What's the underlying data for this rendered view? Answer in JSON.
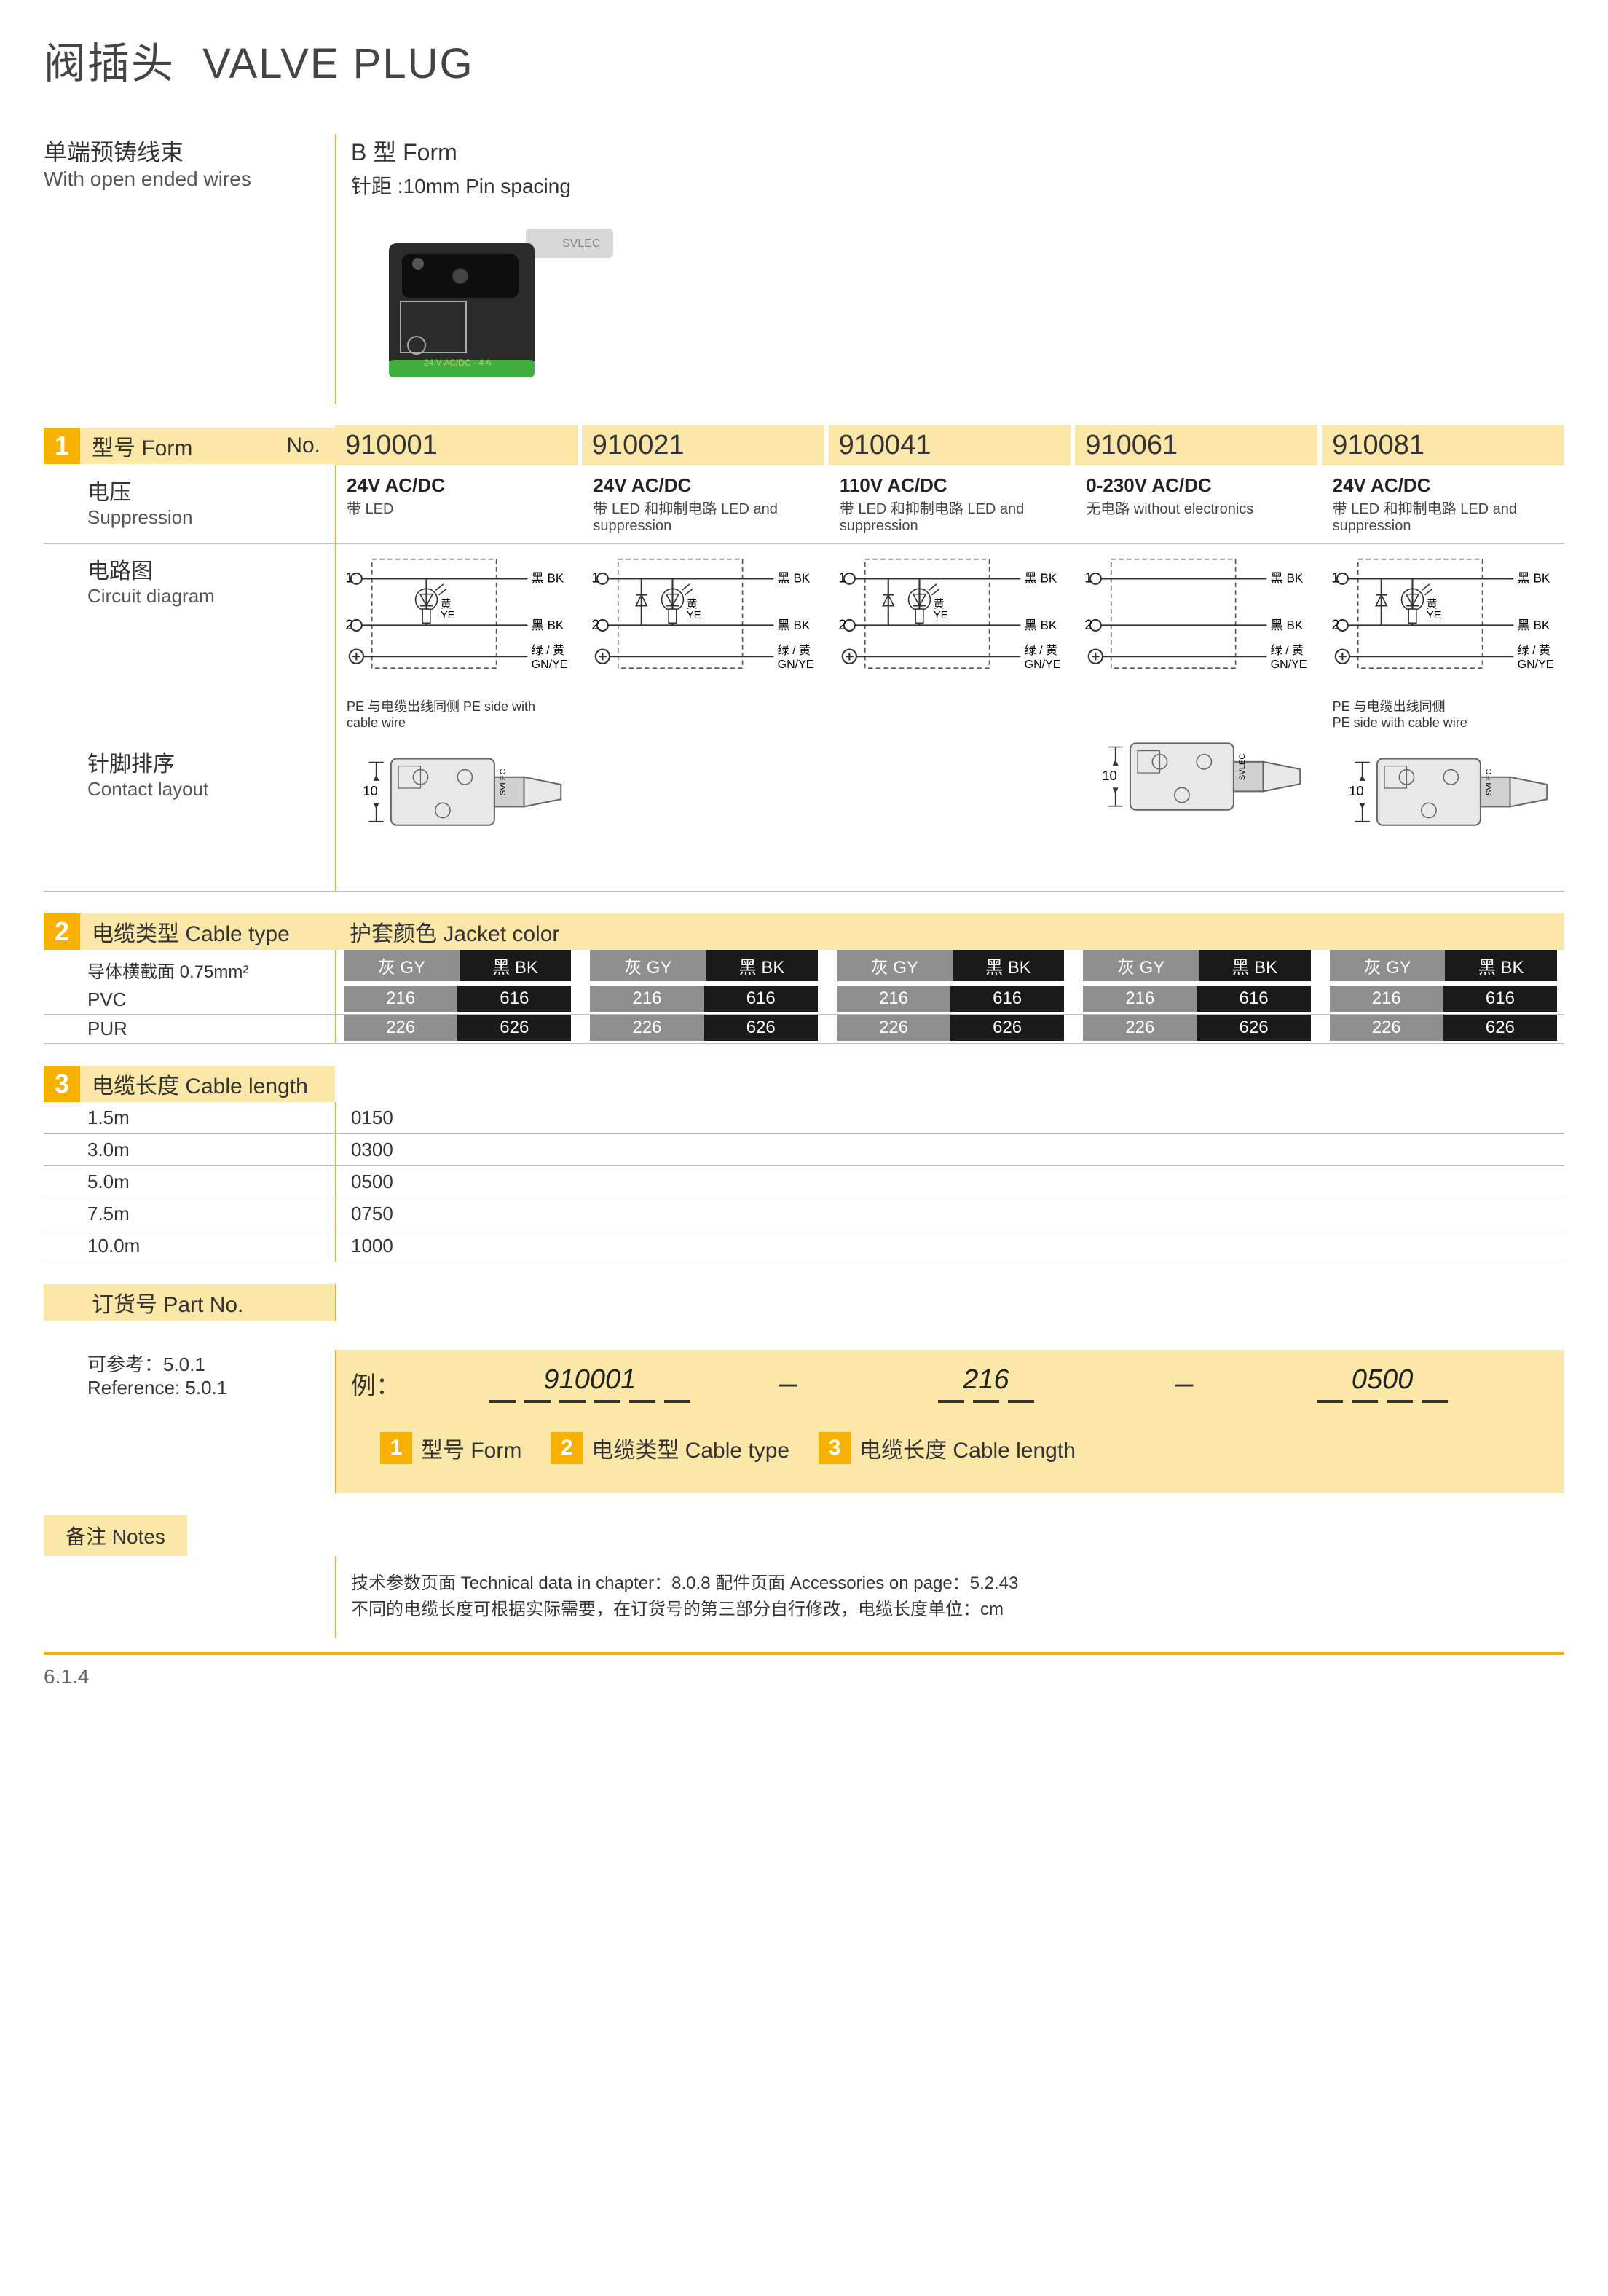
{
  "page_title_cn": "阀插头",
  "page_title_en": "VALVE PLUG",
  "left_header_cn": "单端预铸线束",
  "left_header_en": "With open ended wires",
  "right_header_cn": "B 型 Form",
  "right_header_en": "针距 :10mm  Pin spacing",
  "section1": {
    "num": "1",
    "label_cn": "型号 Form",
    "label_no": "No.",
    "models": [
      "910001",
      "910021",
      "910041",
      "910061",
      "910081"
    ],
    "voltage_label_cn": "电压",
    "voltage_label_en": "Suppression",
    "voltages": [
      {
        "v": "24V AC/DC",
        "sub": "带 LED"
      },
      {
        "v": "24V AC/DC",
        "sub": "带 LED 和抑制电路 LED and suppression"
      },
      {
        "v": "110V AC/DC",
        "sub": "带 LED 和抑制电路 LED and suppression"
      },
      {
        "v": "0-230V AC/DC",
        "sub": "无电路 without electronics"
      },
      {
        "v": "24V AC/DC",
        "sub": "带 LED 和抑制电路 LED and suppression"
      }
    ],
    "circuit_label_cn": "电路图",
    "circuit_label_en": "Circuit diagram",
    "contact_label_cn": "针脚排序",
    "contact_label_en": "Contact layout",
    "contact_note": "PE 与电缆出线同侧  PE side with cable wire"
  },
  "section2": {
    "num": "2",
    "label": "电缆类型 Cable type",
    "jacket_label": "护套颜色 Jacket color",
    "conductor": "导体横截面  0.75mm²",
    "colors": {
      "gy": "灰 GY",
      "bk": "黑 BK"
    },
    "rows": [
      {
        "name": "PVC",
        "gy": "216",
        "bk": "616"
      },
      {
        "name": "PUR",
        "gy": "226",
        "bk": "626"
      }
    ]
  },
  "section3": {
    "num": "3",
    "label": "电缆长度 Cable length",
    "rows": [
      {
        "len": "1.5m",
        "code": "0150"
      },
      {
        "len": "3.0m",
        "code": "0300"
      },
      {
        "len": "5.0m",
        "code": "0500"
      },
      {
        "len": "7.5m",
        "code": "0750"
      },
      {
        "len": "10.0m",
        "code": "1000"
      }
    ]
  },
  "partno": {
    "label": "订货号 Part No.",
    "ref_cn": "可参考：5.0.1",
    "ref_en": "Reference: 5.0.1",
    "eg_label": "例：",
    "eg1": "910001",
    "eg2": "216",
    "eg3": "0500",
    "leg1": "型号 Form",
    "leg2": "电缆类型 Cable type",
    "leg3": "电缆长度 Cable length"
  },
  "notes": {
    "label": "备注 Notes",
    "line1": "技术参数页面   Technical data in chapter：8.0.8        配件页面   Accessories on page：5.2.43",
    "line2": "不同的电缆长度可根据实际需要，在订货号的第三部分自行修改，电缆长度单位：cm"
  },
  "circuit": {
    "pin1": "1",
    "pin2": "2",
    "gnd": "⏚",
    "bk": "黑 BK",
    "gnye": "绿 / 黄\nGN/YE",
    "ye": "黄\nYE"
  },
  "page_footer": "6.1.4",
  "colors_palette": {
    "accent": "#f7b100",
    "band": "#fbe8a8",
    "grey": "#8f8f8f",
    "black": "#1a1a1a"
  }
}
